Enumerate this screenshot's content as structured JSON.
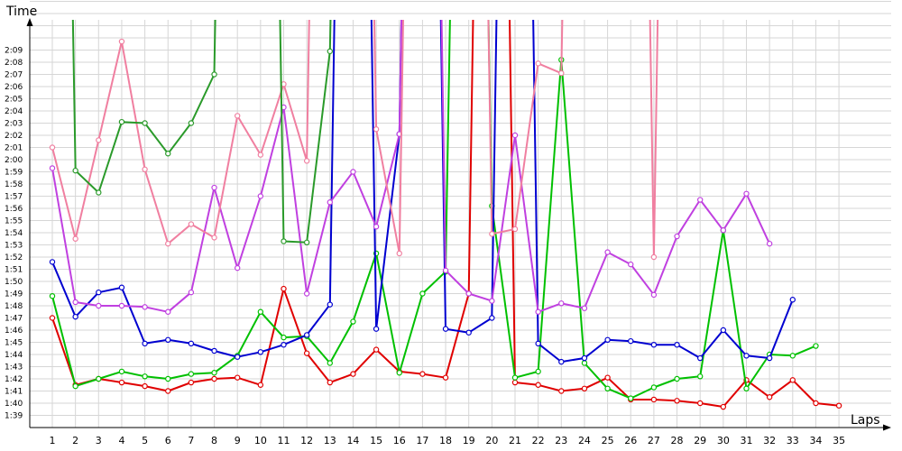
{
  "chart_data": {
    "type": "line",
    "xlabel": "Laps",
    "ylabel": "Time",
    "x_tick_labels": [
      "1",
      "2",
      "3",
      "4",
      "5",
      "6",
      "7",
      "8",
      "9",
      "10",
      "11",
      "12",
      "13",
      "14",
      "15",
      "16",
      "17",
      "18",
      "19",
      "20",
      "21",
      "22",
      "23",
      "24",
      "25",
      "26",
      "27",
      "28",
      "29",
      "30",
      "31",
      "32",
      "33",
      "34",
      "35"
    ],
    "y_tick_labels": [
      "1:39",
      "1:40",
      "1:41",
      "1:42",
      "1:43",
      "1:44",
      "1:45",
      "1:46",
      "1:47",
      "1:48",
      "1:49",
      "1:50",
      "1:51",
      "1:52",
      "1:53",
      "1:54",
      "1:55",
      "1:56",
      "1:57",
      "1:58",
      "1:59",
      "2:00",
      "2:01",
      "2:02",
      "2:03",
      "2:04",
      "2:05",
      "2:06",
      "2:07",
      "2:08",
      "2:09"
    ],
    "ylim_seconds": [
      98,
      210
    ],
    "grid": true,
    "series": [
      {
        "color": "#e00000",
        "values": [
          107,
          101.5,
          102,
          101.7,
          101.4,
          101,
          101.7,
          102,
          102.1,
          101.5,
          109.4,
          104.1,
          101.7,
          102.4,
          104.4,
          102.6,
          102.4,
          102.1,
          109,
          230,
          101.7,
          101.5,
          101,
          101.2,
          102.1,
          100.3,
          100.3,
          100.2,
          100,
          99.7,
          101.9,
          100.5,
          101.9,
          100,
          99.8
        ]
      },
      {
        "color": "#00c000",
        "values": [
          108.8,
          101.4,
          102,
          102.6,
          102.2,
          102,
          102.4,
          102.5,
          103.9,
          107.5,
          105.4,
          105.5,
          103.3,
          106.7,
          112.3,
          102.5,
          109,
          110.8,
          220,
          116.2,
          102.1,
          102.6,
          128.2,
          103.3,
          101.2,
          100.4,
          101.3,
          102,
          102.2,
          114.2,
          101.2,
          104,
          103.9,
          104.7,
          null
        ]
      },
      {
        "color": "#0000d0",
        "values": [
          111.6,
          107.1,
          109.1,
          109.5,
          104.9,
          105.2,
          104.9,
          104.3,
          103.8,
          104.2,
          104.8,
          105.6,
          108.1,
          230,
          106.1,
          122.1,
          230,
          106.1,
          105.8,
          107,
          230,
          104.9,
          103.4,
          103.7,
          105.2,
          105.1,
          104.8,
          104.8,
          103.7,
          106,
          103.9,
          103.7,
          108.5,
          null,
          null
        ]
      },
      {
        "color": "#c040e0",
        "values": [
          119.3,
          108.3,
          108,
          108,
          107.9,
          107.5,
          109.1,
          117.7,
          111.1,
          117,
          124.3,
          109,
          116.5,
          119,
          114.5,
          122.1,
          230,
          110.9,
          109,
          108.4,
          122,
          107.5,
          108.2,
          107.8,
          112.4,
          111.4,
          108.9,
          113.7,
          116.7,
          114.2,
          117.2,
          113.1,
          null,
          null,
          null
        ]
      },
      {
        "color": "#f07fa0",
        "values": [
          121,
          113.5,
          121.6,
          129.7,
          119.2,
          113.1,
          114.7,
          113.6,
          123.6,
          120.4,
          126.2,
          119.9,
          230,
          230,
          122.5,
          112.3,
          230,
          230,
          230,
          113.9,
          114.3,
          127.9,
          127.1,
          230,
          230,
          230,
          112,
          230,
          null,
          null,
          null,
          null,
          null,
          null,
          null
        ]
      },
      {
        "color": "#2a9a2a",
        "values": [
          230,
          119.1,
          117.3,
          123.1,
          123,
          120.5,
          123,
          127,
          230,
          230,
          113.3,
          113.2,
          128.9,
          230,
          null,
          null,
          null,
          null,
          null,
          null,
          null,
          null,
          null,
          null,
          null,
          null,
          null,
          null,
          null,
          null,
          null,
          null,
          null,
          null,
          null
        ]
      }
    ]
  }
}
